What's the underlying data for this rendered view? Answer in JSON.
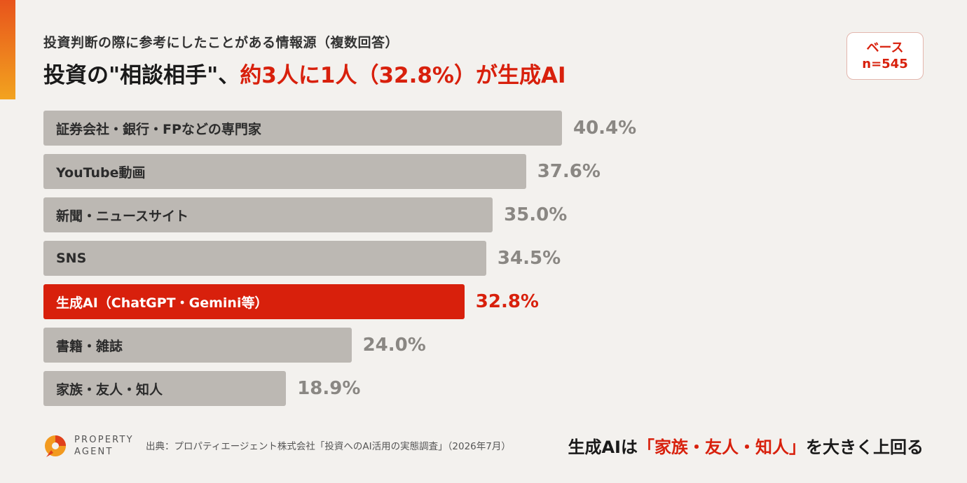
{
  "header": {
    "subtitle": "投資判断の際に参考にしたことがある情報源（複数回答）",
    "headline_black": "投資の\"相談相手\"、",
    "headline_red": "約3人に1人（32.8%）が生成AI",
    "base_label": "ベース",
    "base_n": "n=545"
  },
  "chart_data": {
    "type": "bar",
    "orientation": "horizontal",
    "unit": "%",
    "categories": [
      "証券会社・銀行・FPなどの専門家",
      "YouTube動画",
      "新聞・ニュースサイト",
      "SNS",
      "生成AI（ChatGPT・Gemini等）",
      "書籍・雑誌",
      "家族・友人・知人"
    ],
    "values": [
      40.4,
      37.6,
      35.0,
      34.5,
      32.8,
      24.0,
      18.9
    ],
    "value_labels": [
      "40.4%",
      "37.6%",
      "35.0%",
      "34.5%",
      "32.8%",
      "24.0%",
      "18.9%"
    ],
    "highlight_index": 4,
    "colors": {
      "default_bar": "#bcb8b3",
      "highlight_bar": "#d8200c",
      "default_value": "#8a8783",
      "highlight_value": "#d8200c"
    }
  },
  "footer": {
    "logo_line1": "PROPERTY",
    "logo_line2": "AGENT",
    "source": "出典：プロパティエージェント株式会社「投資へのAI活用の実態調査」（2026年7月）",
    "conclusion_black": "生成AIは",
    "conclusion_red": "「家族・友人・知人」",
    "conclusion_end": "を大きく上回る"
  },
  "colors": {
    "accent": "#d8200c",
    "background": "#f3f1ee",
    "logo_orange": "#f29a1f",
    "logo_red": "#e0401c"
  }
}
